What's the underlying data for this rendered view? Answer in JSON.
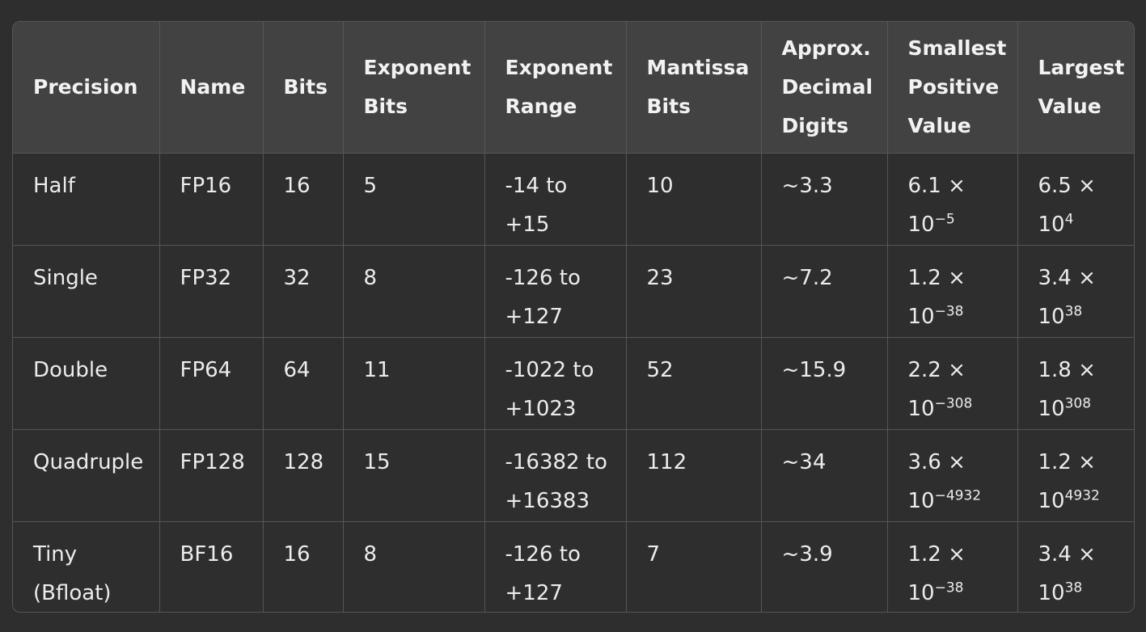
{
  "columns": [
    "Precision",
    "Name",
    "Bits",
    "Exponent Bits",
    "Exponent Range",
    "Mantissa Bits",
    "Approx. Decimal Digits",
    "Smallest Positive Value",
    "Largest Value"
  ],
  "rows": [
    {
      "precision": "Half",
      "name": "FP16",
      "bits": "16",
      "exponent_bits": "5",
      "exponent_range": "-14 to +15",
      "mantissa_bits": "10",
      "decimal_digits": "~3.3",
      "smallest_mantissa": "6.1 × 10",
      "smallest_exp": "−5",
      "largest_mantissa": "6.5 × 10",
      "largest_exp": "4"
    },
    {
      "precision": "Single",
      "name": "FP32",
      "bits": "32",
      "exponent_bits": "8",
      "exponent_range": "-126 to +127",
      "mantissa_bits": "23",
      "decimal_digits": "~7.2",
      "smallest_mantissa": "1.2 × 10",
      "smallest_exp": "−38",
      "largest_mantissa": "3.4 × 10",
      "largest_exp": "38"
    },
    {
      "precision": "Double",
      "name": "FP64",
      "bits": "64",
      "exponent_bits": "11",
      "exponent_range": "-1022 to +1023",
      "mantissa_bits": "52",
      "decimal_digits": "~15.9",
      "smallest_mantissa": "2.2 × 10",
      "smallest_exp": "−308",
      "largest_mantissa": "1.8 × 10",
      "largest_exp": "308"
    },
    {
      "precision": "Quadruple",
      "name": "FP128",
      "bits": "128",
      "exponent_bits": "15",
      "exponent_range": "-16382 to +16383",
      "mantissa_bits": "112",
      "decimal_digits": "~34",
      "smallest_mantissa": "3.6 × 10",
      "smallest_exp": "−4932",
      "largest_mantissa": "1.2 × 10",
      "largest_exp": "4932"
    },
    {
      "precision": "Tiny (Bfloat)",
      "name": "BF16",
      "bits": "16",
      "exponent_bits": "8",
      "exponent_range": "-126 to +127",
      "mantissa_bits": "7",
      "decimal_digits": "~3.9",
      "smallest_mantissa": "1.2 × 10",
      "smallest_exp": "−38",
      "largest_mantissa": "3.4 × 10",
      "largest_exp": "38"
    }
  ]
}
